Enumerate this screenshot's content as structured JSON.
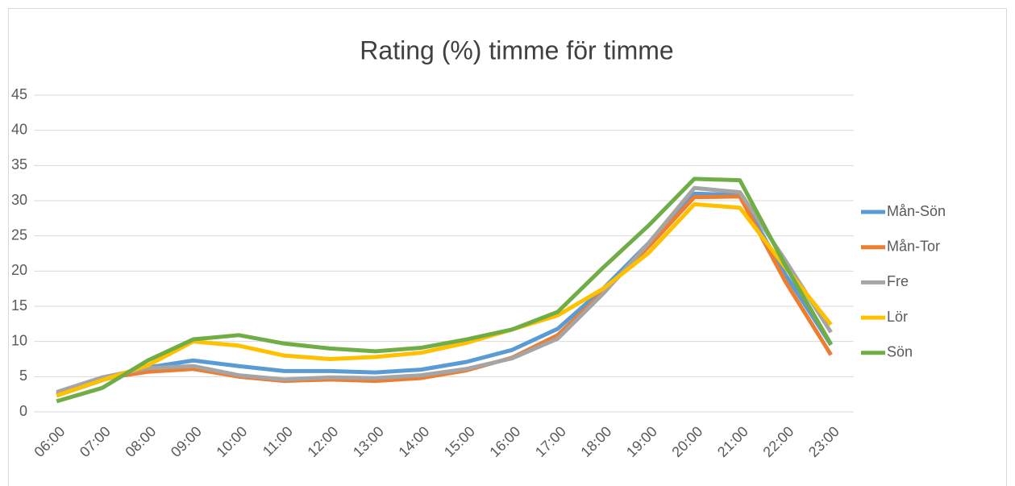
{
  "chart_data": {
    "type": "line",
    "title": "Rating (%) timme för timme",
    "categories": [
      "06:00",
      "07:00",
      "08:00",
      "09:00",
      "10:00",
      "11:00",
      "12:00",
      "13:00",
      "14:00",
      "15:00",
      "16:00",
      "17:00",
      "18:00",
      "19:00",
      "20:00",
      "21:00",
      "22:00",
      "23:00"
    ],
    "series": [
      {
        "name": "Mån-Sön",
        "color": "#5b9bd5",
        "values": [
          2.3,
          4.5,
          6.3,
          7.3,
          6.5,
          5.8,
          5.8,
          5.6,
          6.0,
          7.1,
          8.8,
          11.8,
          17.5,
          24,
          31,
          30.8,
          19.5,
          9.5
        ]
      },
      {
        "name": "Mån-Tor",
        "color": "#ed7d31",
        "values": [
          2.5,
          4.7,
          5.7,
          6.1,
          5.0,
          4.4,
          4.6,
          4.4,
          4.8,
          5.9,
          7.7,
          10.9,
          17,
          23.5,
          30.5,
          30.6,
          18.5,
          8.1
        ]
      },
      {
        "name": "Fre",
        "color": "#a5a5a5",
        "values": [
          2.8,
          4.9,
          6.2,
          6.5,
          5.2,
          4.6,
          4.9,
          4.8,
          5.2,
          6.1,
          7.6,
          10.4,
          16.8,
          24,
          31.8,
          31.2,
          21.5,
          11.3
        ]
      },
      {
        "name": "Lör",
        "color": "#ffc000",
        "values": [
          2.3,
          4.5,
          6.6,
          10.0,
          9.4,
          8.0,
          7.5,
          7.8,
          8.4,
          9.8,
          11.7,
          13.7,
          17.5,
          22.6,
          29.5,
          29.0,
          20.5,
          12.4
        ]
      },
      {
        "name": "Sön",
        "color": "#70ad47",
        "values": [
          1.5,
          3.4,
          7.3,
          10.3,
          10.9,
          9.7,
          9.0,
          8.6,
          9.1,
          10.3,
          11.7,
          14.2,
          20.5,
          26.5,
          33.1,
          32.9,
          20.8,
          9.6
        ]
      }
    ],
    "ylim": [
      0,
      45
    ],
    "yticks": [
      0,
      5,
      10,
      15,
      20,
      25,
      30,
      35,
      40,
      45
    ],
    "grid": true,
    "legend": "right"
  }
}
